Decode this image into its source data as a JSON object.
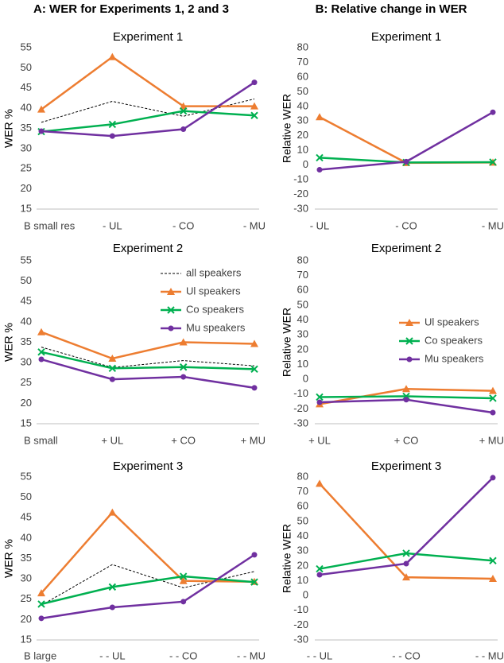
{
  "headers": [
    "A: WER for Experiments 1, 2 and 3",
    "B: Relative change in WER"
  ],
  "chart_data": [
    {
      "type": "line",
      "title": "Experiment 1",
      "ylabel": "WER %",
      "categories": [
        "B small res",
        "- UL",
        "- CO",
        "- MU"
      ],
      "ylim": [
        15,
        55
      ],
      "yticks": [
        15,
        20,
        25,
        30,
        35,
        40,
        45,
        50,
        55
      ],
      "series": [
        {
          "color": "#000000",
          "marker": "none",
          "dash": true,
          "values": [
            36.5,
            41.7,
            38,
            42.3
          ]
        },
        {
          "color": "#ed7d31",
          "marker": "triangle",
          "values": [
            39.7,
            52.7,
            40.5,
            40.5
          ]
        },
        {
          "color": "#00b050",
          "marker": "x",
          "values": [
            34.2,
            36,
            39.3,
            38.2
          ]
        },
        {
          "color": "#7030a0",
          "marker": "circle",
          "values": [
            34.3,
            33.1,
            34.8,
            46.4
          ]
        }
      ]
    },
    {
      "type": "line",
      "title": "Experiment 2",
      "ylabel": "WER %",
      "categories": [
        "B small",
        "+ UL",
        "+ CO",
        "+ MU"
      ],
      "ylim": [
        15,
        55
      ],
      "yticks": [
        15,
        20,
        25,
        30,
        35,
        40,
        45,
        50,
        55
      ],
      "legend": "upper right",
      "series": [
        {
          "name": "all speakers",
          "color": "#000000",
          "marker": "none",
          "dash": true,
          "values": [
            33.8,
            28.8,
            30.5,
            29.2
          ]
        },
        {
          "name": "Ul speakers",
          "color": "#ed7d31",
          "marker": "triangle",
          "values": [
            37.5,
            31,
            35,
            34.6
          ]
        },
        {
          "name": "Co speakers",
          "color": "#00b050",
          "marker": "x",
          "values": [
            32.6,
            28.6,
            28.9,
            28.4
          ]
        },
        {
          "name": "Mu speakers",
          "color": "#7030a0",
          "marker": "circle",
          "values": [
            30.8,
            25.9,
            26.5,
            23.8
          ]
        }
      ]
    },
    {
      "type": "line",
      "title": "Experiment 3",
      "ylabel": "WER %",
      "categories": [
        "B large",
        "- - UL",
        "- - CO",
        "- - MU"
      ],
      "ylim": [
        15,
        55
      ],
      "yticks": [
        15,
        20,
        25,
        30,
        35,
        40,
        45,
        50,
        55
      ],
      "series": [
        {
          "color": "#000000",
          "marker": "none",
          "dash": true,
          "values": [
            23.5,
            33.5,
            27.8,
            31.8
          ]
        },
        {
          "color": "#ed7d31",
          "marker": "triangle",
          "values": [
            26.5,
            46.3,
            29.5,
            29.3
          ]
        },
        {
          "color": "#00b050",
          "marker": "x",
          "values": [
            23.8,
            28,
            30.6,
            29.2
          ]
        },
        {
          "color": "#7030a0",
          "marker": "circle",
          "values": [
            20.3,
            23,
            24.4,
            35.9
          ]
        }
      ]
    },
    {
      "type": "line",
      "title": "Experiment 1",
      "ylabel": "Relative WER",
      "categories": [
        "- UL",
        "- CO",
        "- MU"
      ],
      "ylim": [
        -30,
        80
      ],
      "yticks": [
        -30,
        -20,
        -10,
        0,
        10,
        20,
        30,
        40,
        50,
        60,
        70,
        80
      ],
      "series": [
        {
          "color": "#ed7d31",
          "marker": "triangle",
          "values": [
            32.7,
            1.5,
            1.8
          ]
        },
        {
          "color": "#00b050",
          "marker": "x",
          "values": [
            5,
            1.8,
            2
          ]
        },
        {
          "color": "#7030a0",
          "marker": "circle",
          "values": [
            -3.2,
            2.3,
            36
          ]
        }
      ]
    },
    {
      "type": "line",
      "title": "Experiment 2",
      "ylabel": "Relative WER",
      "categories": [
        "+ UL",
        "+ CO",
        "+ MU"
      ],
      "ylim": [
        -30,
        80
      ],
      "yticks": [
        -30,
        -20,
        -10,
        0,
        10,
        20,
        30,
        40,
        50,
        60,
        70,
        80
      ],
      "legend": "center right",
      "series": [
        {
          "name": "Ul speakers",
          "color": "#ed7d31",
          "marker": "triangle",
          "values": [
            -16.8,
            -6.5,
            -7.8
          ]
        },
        {
          "name": "Co speakers",
          "color": "#00b050",
          "marker": "x",
          "values": [
            -12,
            -11.5,
            -12.8
          ]
        },
        {
          "name": "Mu speakers",
          "color": "#7030a0",
          "marker": "circle",
          "values": [
            -15.5,
            -13.8,
            -22.5
          ]
        }
      ]
    },
    {
      "type": "line",
      "title": "Experiment 3",
      "ylabel": "Relative WER",
      "categories": [
        "- - UL",
        "- - CO",
        "- - MU"
      ],
      "ylim": [
        -30,
        80
      ],
      "yticks": [
        -30,
        -20,
        -10,
        0,
        10,
        20,
        30,
        40,
        50,
        60,
        70,
        80
      ],
      "series": [
        {
          "color": "#ed7d31",
          "marker": "triangle",
          "values": [
            75.5,
            12.3,
            11.3
          ]
        },
        {
          "color": "#00b050",
          "marker": "x",
          "values": [
            18,
            28.5,
            23.5
          ]
        },
        {
          "color": "#7030a0",
          "marker": "circle",
          "values": [
            14,
            21.5,
            79.5
          ]
        }
      ]
    }
  ]
}
